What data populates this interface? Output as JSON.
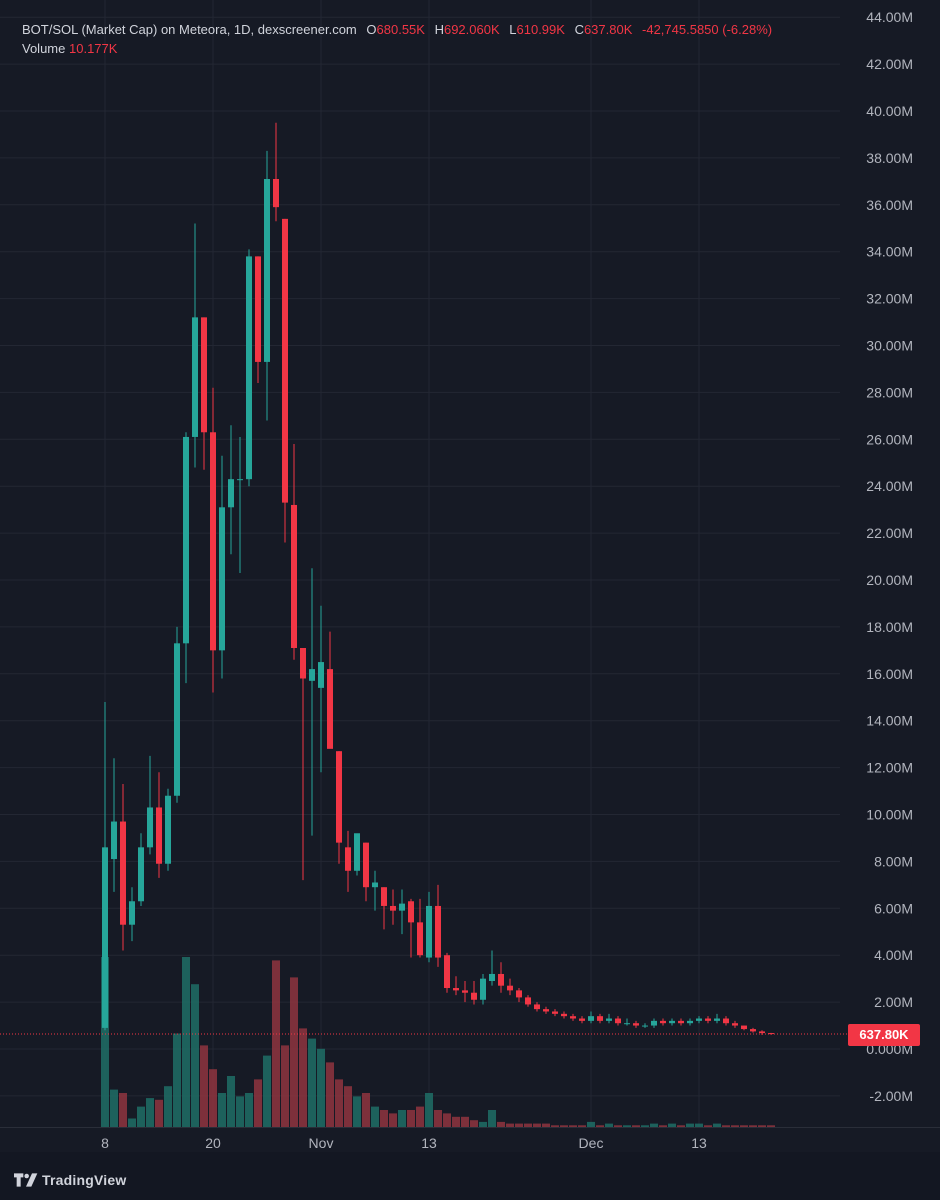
{
  "legend": {
    "symbol": "BOT/SOL (Market Cap) on Meteora, 1D, dexscreener.com",
    "o_label": "O",
    "o_value": "680.55K",
    "h_label": "H",
    "h_value": "692.060K",
    "l_label": "L",
    "l_value": "610.99K",
    "c_label": "C",
    "c_value": "637.80K",
    "change": "-42,745.5850 (-6.28%)",
    "volume_label": "Volume",
    "volume_value": "10.177K"
  },
  "last_price_label": "637.80K",
  "brand": {
    "name": "TradingView",
    "icon": "tradingview-logo-icon"
  },
  "colors": {
    "background": "#161a25",
    "up": "#26a69a",
    "down": "#f23645",
    "up_volume": "#1f6f66",
    "down_volume": "#8f3540",
    "grid": "#232733",
    "axis_text": "#b2b5be"
  },
  "chart_data": {
    "type": "candlestick",
    "title": "BOT/SOL (Market Cap) on Meteora, 1D, dexscreener.com",
    "unit": "M",
    "ylim": [
      -3.2,
      44
    ],
    "y_ticks": [
      "44.00M",
      "42.00M",
      "40.00M",
      "38.00M",
      "36.00M",
      "34.00M",
      "32.00M",
      "30.00M",
      "28.00M",
      "26.00M",
      "24.00M",
      "22.00M",
      "20.00M",
      "18.00M",
      "16.00M",
      "14.00M",
      "12.00M",
      "10.00M",
      "8.00M",
      "6.00M",
      "4.00M",
      "2.00M",
      "0.000M",
      "-2.00M"
    ],
    "y_tick_values": [
      44,
      42,
      40,
      38,
      36,
      34,
      32,
      30,
      28,
      26,
      24,
      22,
      20,
      18,
      16,
      14,
      12,
      10,
      8,
      6,
      4,
      2,
      0,
      -2
    ],
    "x_ticks": [
      {
        "label": "8",
        "index": 0
      },
      {
        "label": "20",
        "index": 12
      },
      {
        "label": "Nov",
        "index": 24
      },
      {
        "label": "13",
        "index": 36
      },
      {
        "label": "Dec",
        "index": 54
      },
      {
        "label": "13",
        "index": 66
      }
    ],
    "last_price": 0.638,
    "grid": true,
    "candles": [
      {
        "o": 0.9,
        "h": 14.8,
        "l": 0.8,
        "c": 8.6
      },
      {
        "o": 8.1,
        "h": 12.4,
        "l": 6.7,
        "c": 9.7
      },
      {
        "o": 9.7,
        "h": 11.3,
        "l": 4.2,
        "c": 5.3
      },
      {
        "o": 5.3,
        "h": 6.9,
        "l": 4.6,
        "c": 6.3
      },
      {
        "o": 6.3,
        "h": 9.2,
        "l": 6.1,
        "c": 8.6
      },
      {
        "o": 8.6,
        "h": 12.5,
        "l": 8.3,
        "c": 10.3
      },
      {
        "o": 10.3,
        "h": 11.8,
        "l": 7.3,
        "c": 7.9
      },
      {
        "o": 7.9,
        "h": 11.1,
        "l": 7.6,
        "c": 10.8
      },
      {
        "o": 10.8,
        "h": 18.0,
        "l": 10.5,
        "c": 17.3
      },
      {
        "o": 17.3,
        "h": 26.3,
        "l": 15.6,
        "c": 26.1
      },
      {
        "o": 26.1,
        "h": 35.2,
        "l": 24.8,
        "c": 31.2
      },
      {
        "o": 31.2,
        "h": 31.2,
        "l": 24.7,
        "c": 26.3
      },
      {
        "o": 26.3,
        "h": 28.2,
        "l": 15.2,
        "c": 17.0
      },
      {
        "o": 17.0,
        "h": 25.3,
        "l": 15.8,
        "c": 23.1
      },
      {
        "o": 23.1,
        "h": 26.6,
        "l": 21.1,
        "c": 24.3
      },
      {
        "o": 24.3,
        "h": 26.1,
        "l": 20.3,
        "c": 24.3
      },
      {
        "o": 24.3,
        "h": 34.1,
        "l": 24.0,
        "c": 33.8
      },
      {
        "o": 33.8,
        "h": 33.8,
        "l": 28.4,
        "c": 29.3
      },
      {
        "o": 29.3,
        "h": 38.3,
        "l": 26.8,
        "c": 37.1
      },
      {
        "o": 37.1,
        "h": 39.5,
        "l": 35.3,
        "c": 35.9
      },
      {
        "o": 35.4,
        "h": 35.4,
        "l": 21.6,
        "c": 23.3
      },
      {
        "o": 23.2,
        "h": 25.8,
        "l": 16.6,
        "c": 17.1
      },
      {
        "o": 17.1,
        "h": 17.1,
        "l": 7.2,
        "c": 15.8
      },
      {
        "o": 15.7,
        "h": 20.5,
        "l": 9.1,
        "c": 16.2
      },
      {
        "o": 15.4,
        "h": 18.9,
        "l": 11.8,
        "c": 16.5
      },
      {
        "o": 16.2,
        "h": 17.8,
        "l": 12.9,
        "c": 12.8
      },
      {
        "o": 12.7,
        "h": 12.7,
        "l": 7.9,
        "c": 8.8
      },
      {
        "o": 8.6,
        "h": 9.3,
        "l": 6.7,
        "c": 7.6
      },
      {
        "o": 7.6,
        "h": 9.0,
        "l": 7.4,
        "c": 9.2
      },
      {
        "o": 8.8,
        "h": 8.8,
        "l": 6.3,
        "c": 6.9
      },
      {
        "o": 6.9,
        "h": 7.6,
        "l": 5.9,
        "c": 7.1
      },
      {
        "o": 6.9,
        "h": 6.9,
        "l": 5.1,
        "c": 6.1
      },
      {
        "o": 6.1,
        "h": 6.8,
        "l": 5.3,
        "c": 5.9
      },
      {
        "o": 5.9,
        "h": 6.8,
        "l": 4.9,
        "c": 6.2
      },
      {
        "o": 6.3,
        "h": 6.4,
        "l": 3.9,
        "c": 5.4
      },
      {
        "o": 5.4,
        "h": 6.4,
        "l": 3.9,
        "c": 4.0
      },
      {
        "o": 3.9,
        "h": 6.7,
        "l": 3.7,
        "c": 6.1
      },
      {
        "o": 6.1,
        "h": 7.0,
        "l": 3.5,
        "c": 3.9
      },
      {
        "o": 4.0,
        "h": 4.1,
        "l": 2.4,
        "c": 2.6
      },
      {
        "o": 2.6,
        "h": 3.1,
        "l": 2.3,
        "c": 2.5
      },
      {
        "o": 2.5,
        "h": 2.9,
        "l": 2.0,
        "c": 2.4
      },
      {
        "o": 2.4,
        "h": 2.9,
        "l": 1.9,
        "c": 2.1
      },
      {
        "o": 2.1,
        "h": 3.2,
        "l": 1.9,
        "c": 3.0
      },
      {
        "o": 2.9,
        "h": 4.2,
        "l": 2.7,
        "c": 3.2
      },
      {
        "o": 3.2,
        "h": 3.7,
        "l": 2.4,
        "c": 2.7
      },
      {
        "o": 2.7,
        "h": 3.0,
        "l": 2.3,
        "c": 2.5
      },
      {
        "o": 2.5,
        "h": 2.6,
        "l": 2.0,
        "c": 2.2
      },
      {
        "o": 2.2,
        "h": 2.3,
        "l": 1.8,
        "c": 1.9
      },
      {
        "o": 1.9,
        "h": 2.0,
        "l": 1.6,
        "c": 1.7
      },
      {
        "o": 1.7,
        "h": 1.8,
        "l": 1.5,
        "c": 1.6
      },
      {
        "o": 1.6,
        "h": 1.7,
        "l": 1.4,
        "c": 1.5
      },
      {
        "o": 1.5,
        "h": 1.6,
        "l": 1.3,
        "c": 1.4
      },
      {
        "o": 1.4,
        "h": 1.5,
        "l": 1.2,
        "c": 1.3
      },
      {
        "o": 1.3,
        "h": 1.4,
        "l": 1.1,
        "c": 1.2
      },
      {
        "o": 1.2,
        "h": 1.6,
        "l": 1.1,
        "c": 1.4
      },
      {
        "o": 1.4,
        "h": 1.5,
        "l": 1.1,
        "c": 1.2
      },
      {
        "o": 1.2,
        "h": 1.5,
        "l": 1.1,
        "c": 1.3
      },
      {
        "o": 1.3,
        "h": 1.4,
        "l": 1.0,
        "c": 1.1
      },
      {
        "o": 1.1,
        "h": 1.3,
        "l": 1.0,
        "c": 1.1
      },
      {
        "o": 1.1,
        "h": 1.2,
        "l": 0.9,
        "c": 1.0
      },
      {
        "o": 1.0,
        "h": 1.1,
        "l": 0.9,
        "c": 1.0
      },
      {
        "o": 1.0,
        "h": 1.3,
        "l": 0.9,
        "c": 1.2
      },
      {
        "o": 1.2,
        "h": 1.3,
        "l": 1.0,
        "c": 1.1
      },
      {
        "o": 1.1,
        "h": 1.3,
        "l": 1.0,
        "c": 1.2
      },
      {
        "o": 1.2,
        "h": 1.3,
        "l": 1.0,
        "c": 1.1
      },
      {
        "o": 1.1,
        "h": 1.3,
        "l": 1.0,
        "c": 1.2
      },
      {
        "o": 1.2,
        "h": 1.4,
        "l": 1.1,
        "c": 1.3
      },
      {
        "o": 1.3,
        "h": 1.4,
        "l": 1.1,
        "c": 1.2
      },
      {
        "o": 1.2,
        "h": 1.5,
        "l": 1.1,
        "c": 1.3
      },
      {
        "o": 1.3,
        "h": 1.4,
        "l": 1.0,
        "c": 1.1
      },
      {
        "o": 1.1,
        "h": 1.2,
        "l": 0.9,
        "c": 1.0
      },
      {
        "o": 1.0,
        "h": 1.0,
        "l": 0.8,
        "c": 0.85
      },
      {
        "o": 0.85,
        "h": 0.9,
        "l": 0.7,
        "c": 0.75
      },
      {
        "o": 0.75,
        "h": 0.8,
        "l": 0.6,
        "c": 0.68
      },
      {
        "o": 0.68,
        "h": 0.69,
        "l": 0.61,
        "c": 0.638
      }
    ],
    "volume_relative": [
      1.0,
      0.22,
      0.2,
      0.05,
      0.12,
      0.17,
      0.16,
      0.24,
      0.55,
      1.0,
      0.84,
      0.48,
      0.34,
      0.2,
      0.3,
      0.18,
      0.2,
      0.28,
      0.42,
      0.98,
      0.48,
      0.88,
      0.58,
      0.52,
      0.46,
      0.38,
      0.28,
      0.24,
      0.18,
      0.2,
      0.12,
      0.1,
      0.08,
      0.1,
      0.1,
      0.12,
      0.2,
      0.1,
      0.08,
      0.06,
      0.06,
      0.04,
      0.03,
      0.1,
      0.03,
      0.02,
      0.02,
      0.02,
      0.02,
      0.02,
      0.01,
      0.01,
      0.01,
      0.01,
      0.03,
      0.01,
      0.02,
      0.01,
      0.01,
      0.01,
      0.01,
      0.02,
      0.01,
      0.02,
      0.01,
      0.02,
      0.02,
      0.01,
      0.02,
      0.01,
      0.01,
      0.01,
      0.01,
      0.01,
      0.01
    ]
  }
}
